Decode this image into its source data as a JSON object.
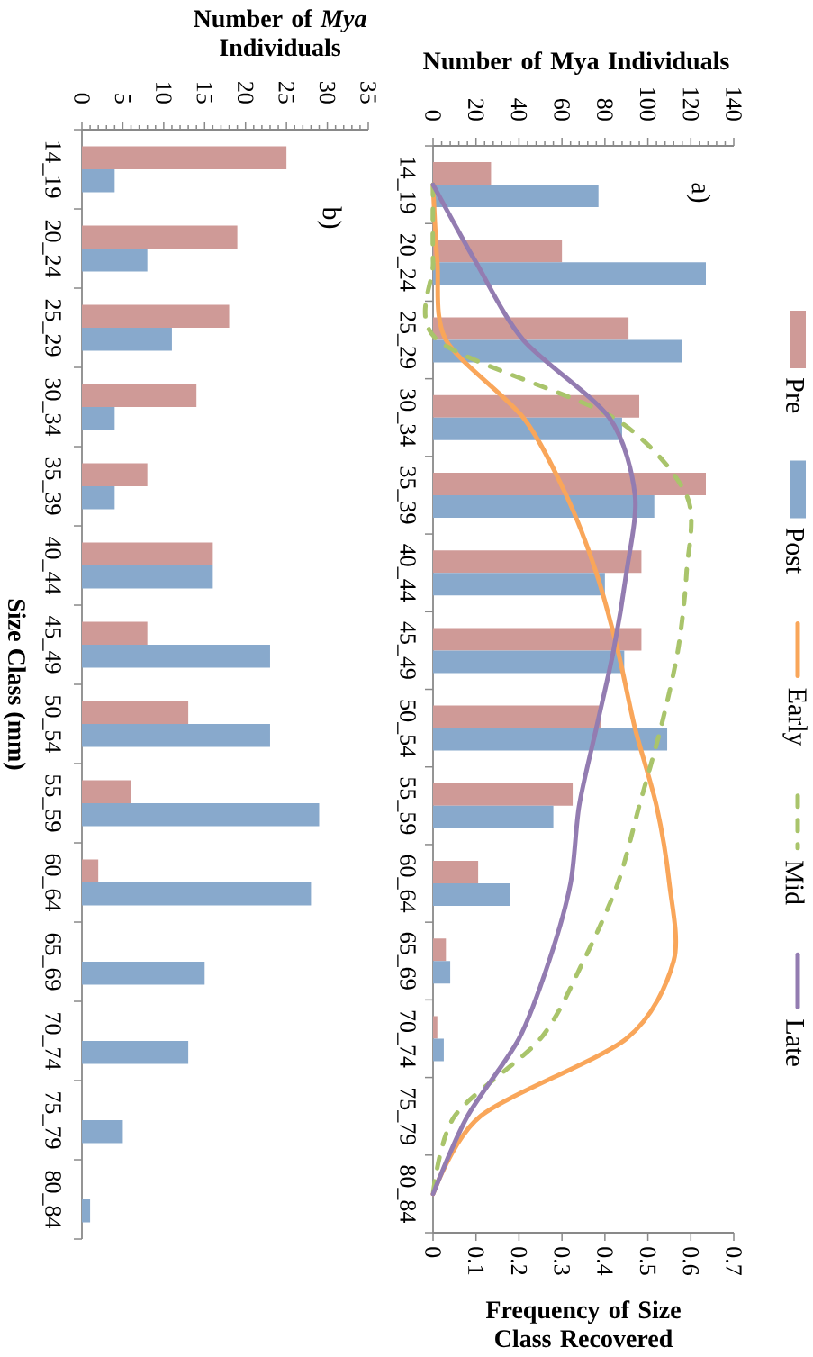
{
  "chart_data": [
    {
      "type": "bar",
      "orientation": "horizontal",
      "annotations": [
        "a)"
      ],
      "categories": [
        "14_19",
        "20_24",
        "25_29",
        "30_34",
        "35_39",
        "40_44",
        "45_49",
        "50_54",
        "55_59",
        "60_64",
        "65_69",
        "70_74",
        "75_79",
        "80_84"
      ],
      "x2label": "Number of Mya Individuals",
      "x2lim": [
        0,
        140
      ],
      "x2ticks": [
        0,
        20,
        40,
        60,
        80,
        100,
        120,
        140
      ],
      "xlabel": "Frequency of Size Class Recovered",
      "xlim": [
        0,
        0.7
      ],
      "xticks": [
        0,
        0.1,
        0.2,
        0.3,
        0.4,
        0.5,
        0.6,
        0.7
      ],
      "series": [
        {
          "name": "Pre",
          "color": "#cf9a97",
          "axis": "x2",
          "values": [
            27,
            60,
            91,
            96,
            127,
            97,
            97,
            78,
            65,
            21,
            6,
            2,
            null,
            null
          ]
        },
        {
          "name": "Post",
          "color": "#88a9cc",
          "axis": "x2",
          "values": [
            77,
            127,
            116,
            88,
            103,
            80,
            89,
            109,
            56,
            36,
            8,
            5,
            null,
            null
          ]
        },
        {
          "name": "Early",
          "type": "line",
          "color": "#f9a65a",
          "values": [
            0,
            0.01,
            0.03,
            0.21,
            0.31,
            0.38,
            0.43,
            0.47,
            0.52,
            0.55,
            0.56,
            0.45,
            0.11,
            0
          ]
        },
        {
          "name": "Mid",
          "type": "line",
          "color": "#a9c46b",
          "line_style": "dashed",
          "values": [
            0,
            0,
            0.01,
            0.42,
            0.59,
            0.59,
            0.57,
            0.53,
            0.48,
            0.43,
            0.35,
            0.25,
            0.05,
            0
          ]
        },
        {
          "name": "Late",
          "type": "line",
          "color": "#937cb1",
          "values": [
            0,
            0.1,
            0.21,
            0.41,
            0.47,
            0.45,
            0.42,
            0.38,
            0.34,
            0.32,
            0.27,
            0.2,
            0.08,
            0
          ]
        }
      ],
      "legend": "right"
    },
    {
      "type": "bar",
      "orientation": "horizontal",
      "annotations": [
        "b)"
      ],
      "categories": [
        "14_19",
        "20_24",
        "25_29",
        "30_34",
        "35_39",
        "40_44",
        "45_49",
        "50_54",
        "55_59",
        "60_64",
        "65_69",
        "70_74",
        "75_79",
        "80_84"
      ],
      "xlabel": "Number of *Mya* Individuals",
      "ylabel": "Size Class (mm)",
      "xlim": [
        0,
        35
      ],
      "xticks": [
        0,
        5,
        10,
        15,
        20,
        25,
        30,
        35
      ],
      "series": [
        {
          "color": "#cf9a97",
          "values": [
            25,
            19,
            18,
            14,
            8,
            16,
            8,
            13,
            6,
            2,
            null,
            null,
            null,
            null
          ]
        },
        {
          "color": "#88a9cc",
          "values": [
            4,
            8,
            11,
            4,
            4,
            16,
            23,
            23,
            29,
            28,
            15,
            13,
            5,
            1
          ]
        }
      ]
    }
  ]
}
